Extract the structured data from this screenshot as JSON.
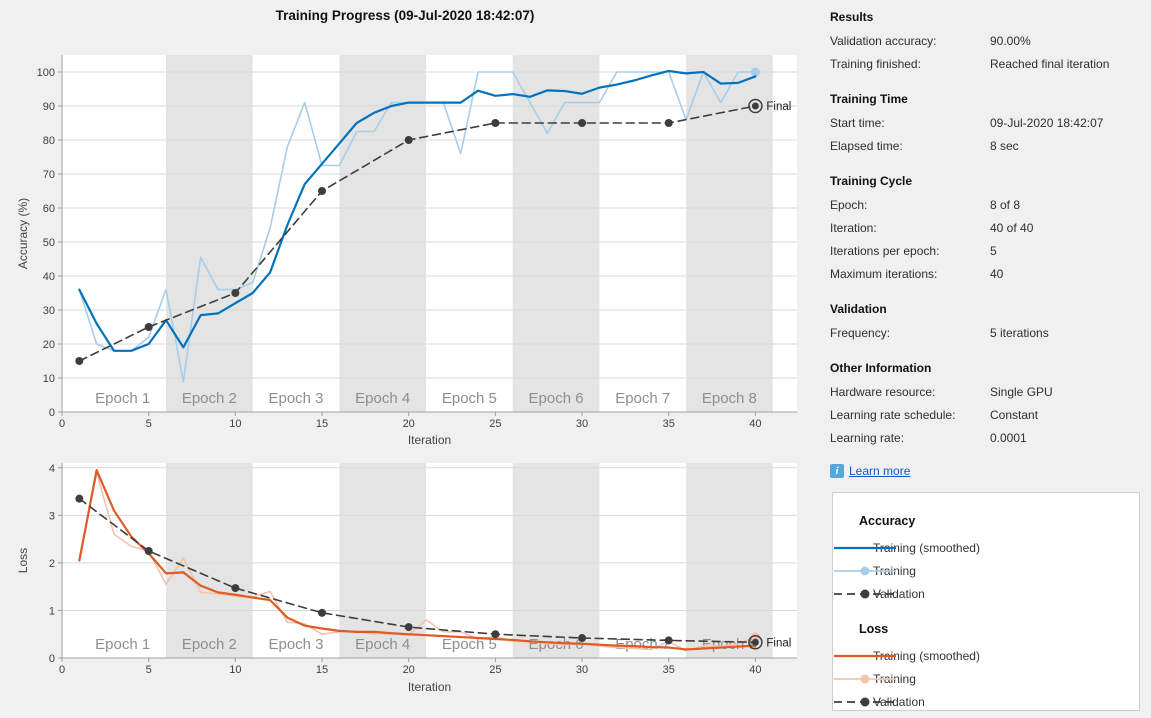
{
  "title": "Training Progress (09-Jul-2020 18:42:07)",
  "panel": {
    "sections": [
      {
        "title": "Results",
        "rows": [
          {
            "label": "Validation accuracy:",
            "value": "90.00%"
          },
          {
            "label": "Training finished:",
            "value": "Reached final iteration"
          }
        ]
      },
      {
        "title": "Training Time",
        "rows": [
          {
            "label": "Start time:",
            "value": "09-Jul-2020 18:42:07"
          },
          {
            "label": "Elapsed time:",
            "value": "8 sec"
          }
        ]
      },
      {
        "title": "Training Cycle",
        "rows": [
          {
            "label": "Epoch:",
            "value": "8 of 8"
          },
          {
            "label": "Iteration:",
            "value": "40 of 40"
          },
          {
            "label": "Iterations per epoch:",
            "value": "5"
          },
          {
            "label": "Maximum iterations:",
            "value": "40"
          }
        ]
      },
      {
        "title": "Validation",
        "rows": [
          {
            "label": "Frequency:",
            "value": "5 iterations"
          }
        ]
      },
      {
        "title": "Other Information",
        "rows": [
          {
            "label": "Hardware resource:",
            "value": "Single GPU"
          },
          {
            "label": "Learning rate schedule:",
            "value": "Constant"
          },
          {
            "label": "Learning rate:",
            "value": "0.0001"
          }
        ]
      }
    ],
    "learn_more_label": "Learn more",
    "info_icon": "i",
    "link_color": "#0d5bc6"
  },
  "legend": {
    "groups": [
      {
        "title": "Accuracy",
        "items": [
          {
            "label": "Training (smoothed)",
            "swatch": "solid-blue"
          },
          {
            "label": "Training",
            "swatch": "marker-light-blue"
          },
          {
            "label": "Validation",
            "swatch": "dashed-dark"
          }
        ]
      },
      {
        "title": "Loss",
        "items": [
          {
            "label": "Training (smoothed)",
            "swatch": "solid-orange"
          },
          {
            "label": "Training",
            "swatch": "marker-light-orange"
          },
          {
            "label": "Validation",
            "swatch": "dashed-dark"
          }
        ]
      }
    ]
  },
  "chart_data": [
    {
      "type": "line",
      "name": "accuracy",
      "ylabel": "Accuracy (%)",
      "xlabel": "Iteration",
      "xlim": [
        0,
        42.4
      ],
      "ylim": [
        0,
        105
      ],
      "xticks": [
        0,
        5,
        10,
        15,
        20,
        25,
        30,
        35,
        40
      ],
      "yticks": [
        0,
        10,
        20,
        30,
        40,
        50,
        60,
        70,
        80,
        90,
        100
      ],
      "grid": "horizontal",
      "epoch_bands": {
        "start_iteration": 1,
        "iterations_per_epoch": 5,
        "count": 8,
        "labels": [
          "Epoch 1",
          "Epoch 2",
          "Epoch 3",
          "Epoch 4",
          "Epoch 5",
          "Epoch 6",
          "Epoch 7",
          "Epoch 8"
        ],
        "shaded": "even",
        "band_color": "#e4e4e4"
      },
      "final_label": "Final",
      "series": [
        {
          "name": "Training (smoothed)",
          "color": "#0072bd",
          "width": 2.2,
          "x": [
            1,
            2,
            3,
            4,
            5,
            6,
            7,
            8,
            9,
            10,
            11,
            12,
            13,
            14,
            15,
            16,
            17,
            18,
            19,
            20,
            21,
            22,
            23,
            24,
            25,
            26,
            27,
            28,
            29,
            30,
            31,
            32,
            33,
            34,
            35,
            36,
            37,
            38,
            39,
            40
          ],
          "y": [
            36,
            26,
            18,
            18,
            20,
            27,
            19,
            28.5,
            29,
            32,
            35,
            41,
            55,
            67,
            73,
            79,
            85,
            88,
            90,
            91,
            91,
            91,
            91,
            94.5,
            93,
            93.5,
            92.7,
            94.6,
            94.4,
            93.6,
            95.4,
            96.3,
            97.5,
            99,
            100.3,
            99.6,
            100,
            96.6,
            96.8,
            98.7
          ]
        },
        {
          "name": "Training",
          "color": "#a8cde8",
          "width": 1.6,
          "end_marker": true,
          "x": [
            1,
            2,
            3,
            4,
            5,
            6,
            7,
            8,
            9,
            10,
            11,
            12,
            13,
            14,
            15,
            16,
            17,
            18,
            19,
            20,
            21,
            22,
            23,
            24,
            25,
            26,
            27,
            28,
            29,
            30,
            31,
            32,
            33,
            34,
            35,
            36,
            37,
            38,
            39,
            40
          ],
          "y": [
            36,
            20,
            18,
            18,
            22,
            36,
            9,
            45.5,
            36,
            36,
            38,
            54,
            78,
            91,
            72.5,
            72.5,
            82.5,
            82.5,
            91,
            91,
            91,
            91,
            76,
            100,
            100,
            100,
            91,
            82,
            91,
            91,
            91,
            100,
            100,
            100,
            100,
            86,
            100,
            91,
            100,
            100
          ]
        },
        {
          "name": "Validation",
          "color": "#3d3d3d",
          "width": 1.6,
          "dash": "8 5",
          "markers": true,
          "final_ring": true,
          "x": [
            1,
            5,
            10,
            15,
            20,
            25,
            30,
            35,
            40
          ],
          "y": [
            15,
            25,
            35,
            65,
            80,
            85,
            85,
            85,
            90
          ]
        }
      ]
    },
    {
      "type": "line",
      "name": "loss",
      "ylabel": "Loss",
      "xlabel": "Iteration",
      "xlim": [
        0,
        42.4
      ],
      "ylim": [
        0,
        4.1
      ],
      "xticks": [
        0,
        5,
        10,
        15,
        20,
        25,
        30,
        35,
        40
      ],
      "yticks": [
        0,
        1,
        2,
        3,
        4
      ],
      "grid": "horizontal",
      "epoch_bands": {
        "start_iteration": 1,
        "iterations_per_epoch": 5,
        "count": 8,
        "labels": [
          "Epoch 1",
          "Epoch 2",
          "Epoch 3",
          "Epoch 4",
          "Epoch 5",
          "Epoch 6",
          "Epoch 7",
          "Epoch 8"
        ],
        "shaded": "even",
        "band_color": "#e4e4e4"
      },
      "final_label": "Final",
      "series": [
        {
          "name": "Training (smoothed)",
          "color": "#df5a25",
          "width": 2.2,
          "x": [
            1,
            2,
            3,
            4,
            5,
            6,
            7,
            8,
            9,
            10,
            11,
            12,
            13,
            14,
            15,
            16,
            17,
            18,
            19,
            20,
            21,
            22,
            23,
            24,
            25,
            26,
            27,
            28,
            29,
            30,
            31,
            32,
            33,
            34,
            35,
            36,
            37,
            38,
            39,
            40
          ],
          "y": [
            2.05,
            3.95,
            3.1,
            2.55,
            2.2,
            1.78,
            1.8,
            1.52,
            1.38,
            1.33,
            1.27,
            1.22,
            0.85,
            0.68,
            0.62,
            0.57,
            0.55,
            0.55,
            0.52,
            0.5,
            0.48,
            0.46,
            0.44,
            0.42,
            0.4,
            0.38,
            0.35,
            0.33,
            0.31,
            0.3,
            0.28,
            0.26,
            0.25,
            0.23,
            0.22,
            0.18,
            0.2,
            0.22,
            0.24,
            0.26
          ]
        },
        {
          "name": "Training",
          "color": "#f2c4ae",
          "width": 1.6,
          "end_marker": true,
          "x": [
            1,
            2,
            3,
            4,
            5,
            6,
            7,
            8,
            9,
            10,
            11,
            12,
            13,
            14,
            15,
            16,
            17,
            18,
            19,
            20,
            21,
            22,
            23,
            24,
            25,
            26,
            27,
            28,
            29,
            30,
            31,
            32,
            33,
            34,
            35,
            36,
            37,
            38,
            39,
            40
          ],
          "y": [
            2.05,
            3.9,
            2.6,
            2.35,
            2.25,
            1.55,
            2.1,
            1.38,
            1.35,
            1.3,
            1.28,
            1.4,
            0.75,
            0.72,
            0.5,
            0.55,
            0.55,
            0.5,
            0.52,
            0.48,
            0.8,
            0.55,
            0.55,
            0.4,
            0.45,
            0.35,
            0.35,
            0.3,
            0.28,
            0.3,
            0.25,
            0.22,
            0.2,
            0.18,
            0.35,
            0.15,
            0.25,
            0.25,
            0.3,
            0.45
          ]
        },
        {
          "name": "Validation",
          "color": "#3d3d3d",
          "width": 1.6,
          "dash": "8 5",
          "markers": true,
          "final_ring": true,
          "x": [
            1,
            5,
            10,
            15,
            20,
            25,
            30,
            35,
            40
          ],
          "y": [
            3.35,
            2.25,
            1.47,
            0.95,
            0.65,
            0.5,
            0.42,
            0.37,
            0.33
          ]
        }
      ]
    }
  ]
}
